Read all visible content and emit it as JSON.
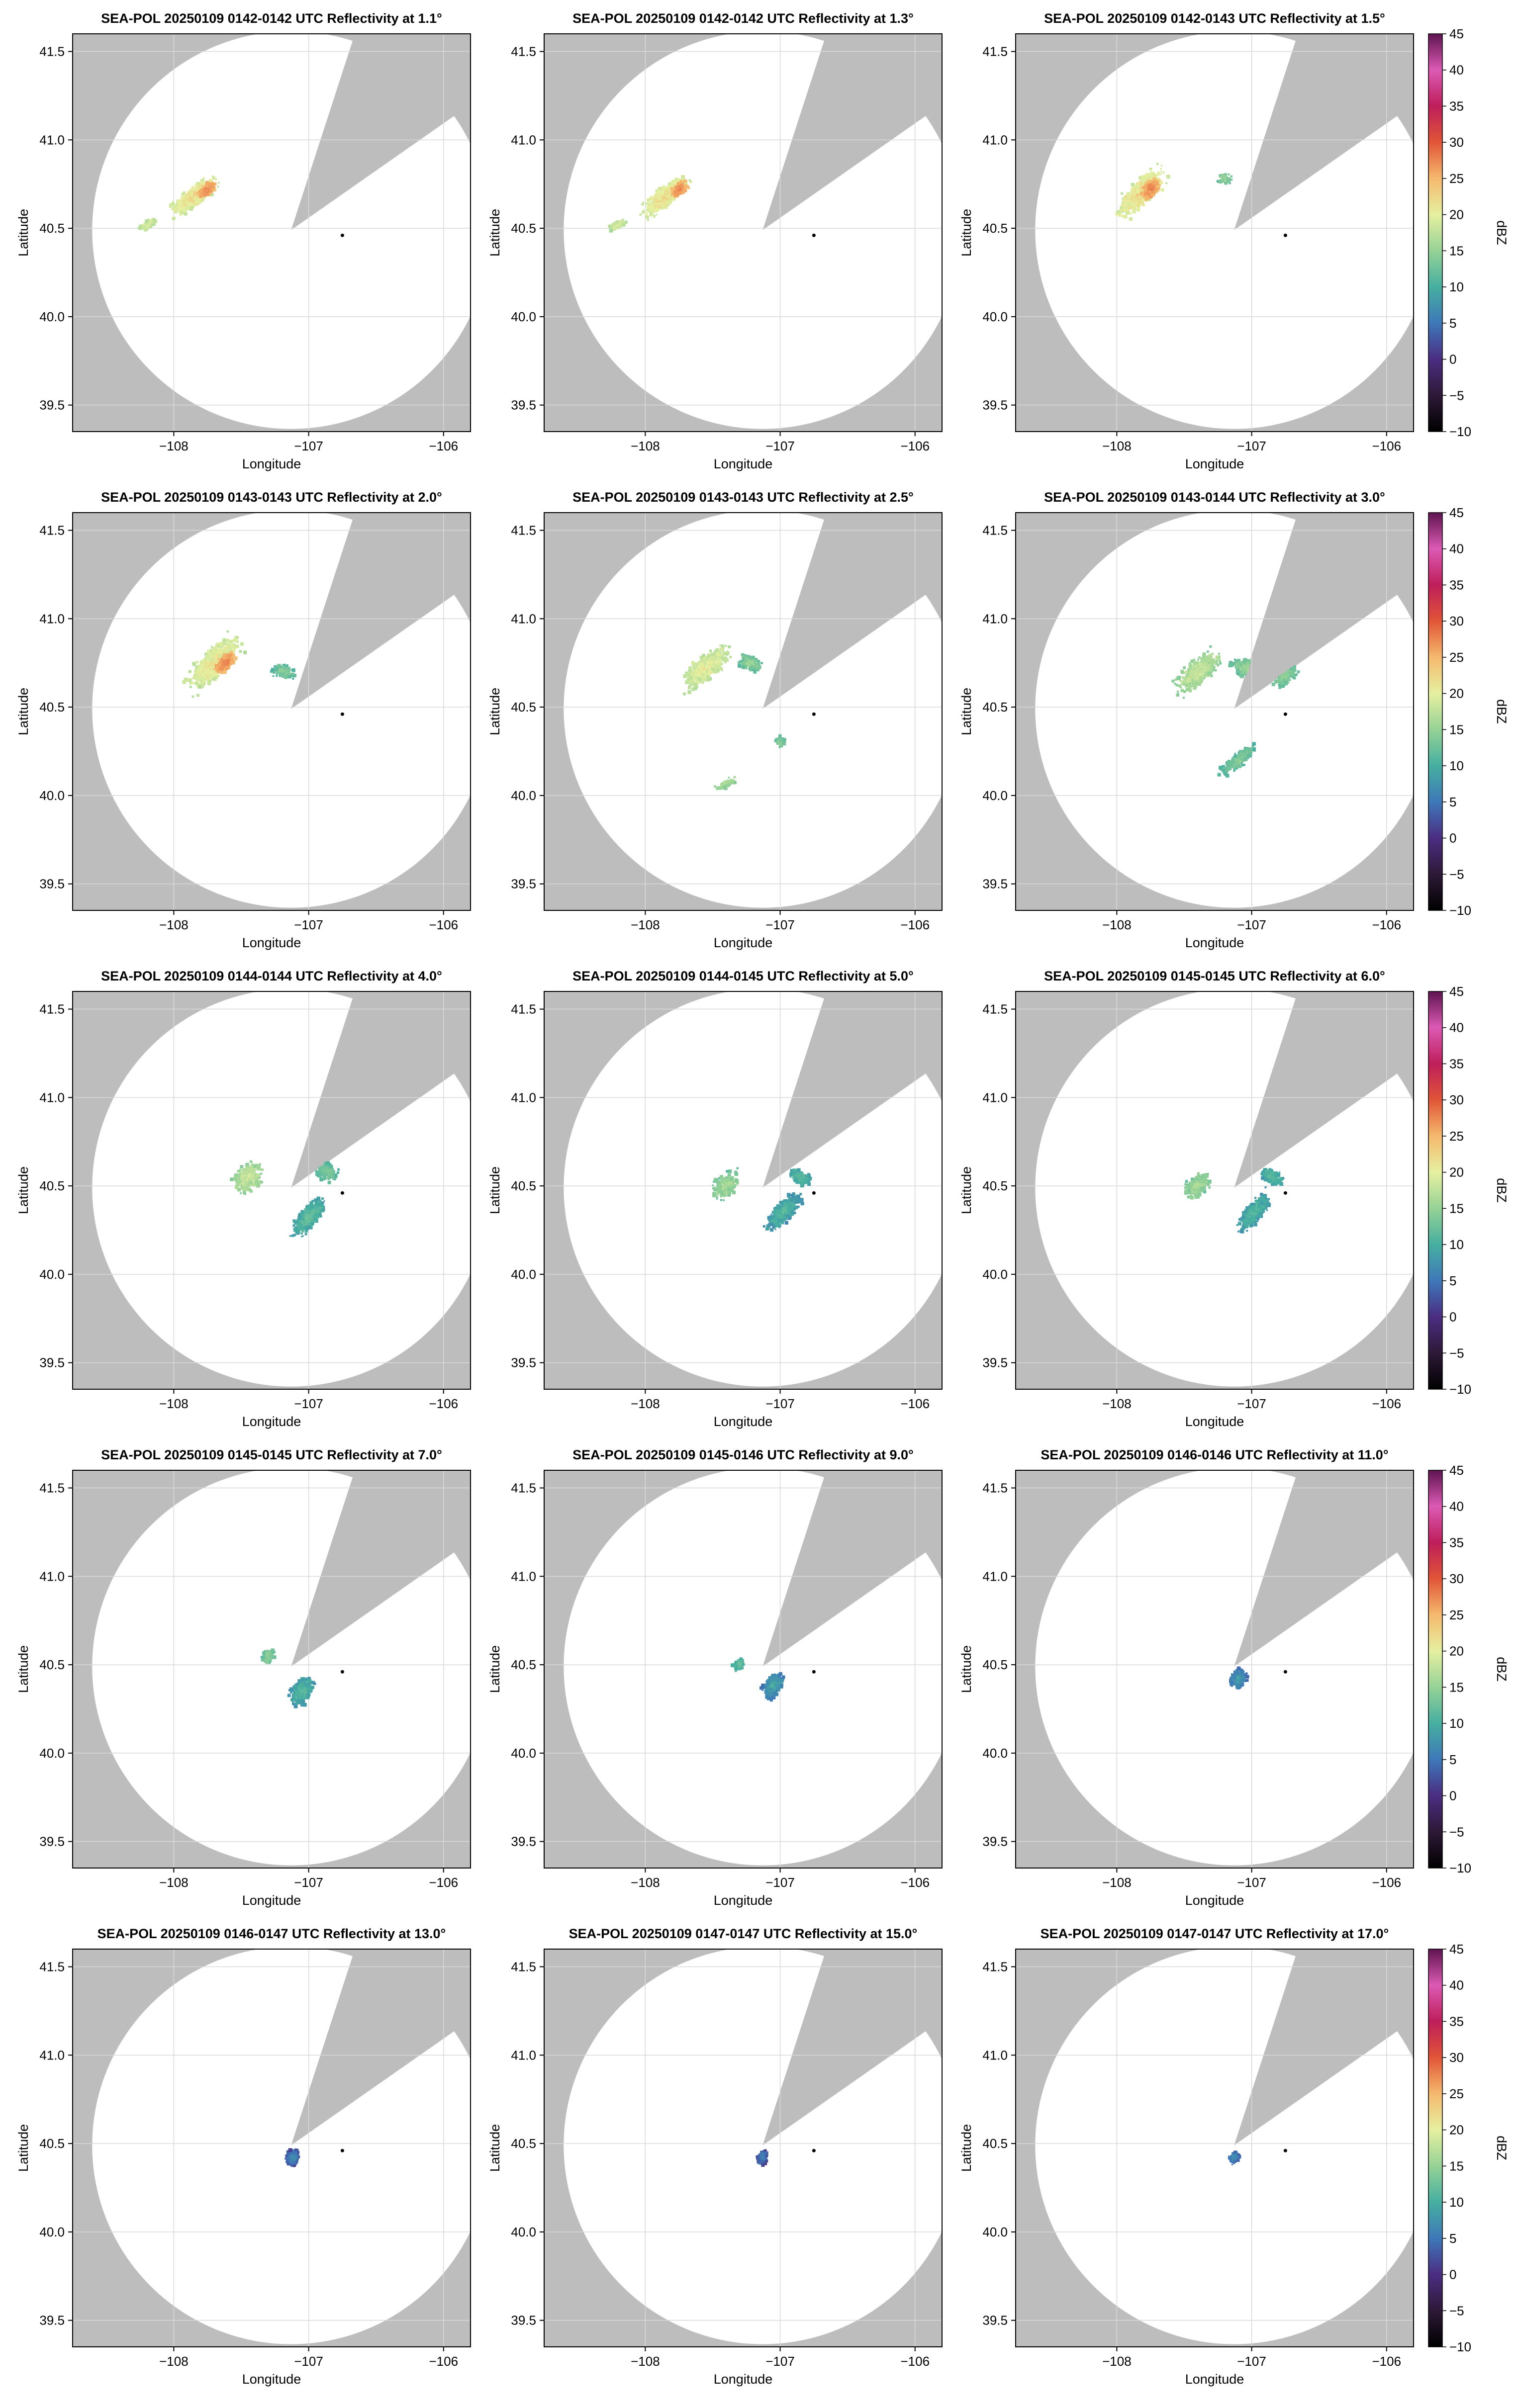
{
  "figure": {
    "xlabel": "Longitude",
    "ylabel": "Latitude",
    "colorbar_label": "dBZ",
    "colorbar_ticks": [
      "45",
      "40",
      "35",
      "30",
      "25",
      "20",
      "15",
      "10",
      "5",
      "0",
      "−5",
      "−10"
    ],
    "colorbar_values": [
      45,
      40,
      35,
      30,
      25,
      20,
      15,
      10,
      5,
      0,
      -5,
      -10
    ],
    "x_tick_labels": [
      "−108",
      "−107",
      "−106"
    ],
    "y_tick_labels": [
      "41.5",
      "41.0",
      "40.5",
      "40.0",
      "39.5"
    ],
    "colors": {
      "outside_range": "#bdbdbd",
      "radar_domain": "#ffffff",
      "grid": "#d9d9d9"
    }
  },
  "chart_data": [
    {
      "type": "heatmap",
      "title": "SEA-POL 20250109 0142-0142 UTC Reflectivity at 1.1°",
      "elevation_deg": 1.1,
      "xlim": [
        -108.75,
        -105.8
      ],
      "ylim": [
        39.35,
        41.6
      ],
      "xticks": [
        -108,
        -107,
        -106
      ],
      "yticks": [
        39.5,
        40.0,
        40.5,
        41.0,
        41.5
      ],
      "station": [
        -106.75,
        40.46
      ],
      "has_colorbar": false
    },
    {
      "type": "heatmap",
      "title": "SEA-POL 20250109 0142-0142 UTC Reflectivity at 1.3°",
      "elevation_deg": 1.3,
      "xlim": [
        -108.75,
        -105.8
      ],
      "ylim": [
        39.35,
        41.6
      ],
      "xticks": [
        -108,
        -107,
        -106
      ],
      "yticks": [
        39.5,
        40.0,
        40.5,
        41.0,
        41.5
      ],
      "station": [
        -106.75,
        40.46
      ],
      "has_colorbar": false
    },
    {
      "type": "heatmap",
      "title": "SEA-POL 20250109 0142-0143 UTC Reflectivity at 1.5°",
      "elevation_deg": 1.5,
      "xlim": [
        -108.75,
        -105.8
      ],
      "ylim": [
        39.35,
        41.6
      ],
      "xticks": [
        -108,
        -107,
        -106
      ],
      "yticks": [
        39.5,
        40.0,
        40.5,
        41.0,
        41.5
      ],
      "station": [
        -106.75,
        40.46
      ],
      "has_colorbar": true
    },
    {
      "type": "heatmap",
      "title": "SEA-POL 20250109 0143-0143 UTC Reflectivity at 2.0°",
      "elevation_deg": 2.0,
      "xlim": [
        -108.75,
        -105.8
      ],
      "ylim": [
        39.35,
        41.6
      ],
      "xticks": [
        -108,
        -107,
        -106
      ],
      "yticks": [
        39.5,
        40.0,
        40.5,
        41.0,
        41.5
      ],
      "station": [
        -106.75,
        40.46
      ],
      "has_colorbar": false
    },
    {
      "type": "heatmap",
      "title": "SEA-POL 20250109 0143-0143 UTC Reflectivity at 2.5°",
      "elevation_deg": 2.5,
      "xlim": [
        -108.75,
        -105.8
      ],
      "ylim": [
        39.35,
        41.6
      ],
      "xticks": [
        -108,
        -107,
        -106
      ],
      "yticks": [
        39.5,
        40.0,
        40.5,
        41.0,
        41.5
      ],
      "station": [
        -106.75,
        40.46
      ],
      "has_colorbar": false
    },
    {
      "type": "heatmap",
      "title": "SEA-POL 20250109 0143-0144 UTC Reflectivity at 3.0°",
      "elevation_deg": 3.0,
      "xlim": [
        -108.75,
        -105.8
      ],
      "ylim": [
        39.35,
        41.6
      ],
      "xticks": [
        -108,
        -107,
        -106
      ],
      "yticks": [
        39.5,
        40.0,
        40.5,
        41.0,
        41.5
      ],
      "station": [
        -106.75,
        40.46
      ],
      "has_colorbar": true
    },
    {
      "type": "heatmap",
      "title": "SEA-POL 20250109 0144-0144 UTC Reflectivity at 4.0°",
      "elevation_deg": 4.0,
      "xlim": [
        -108.75,
        -105.8
      ],
      "ylim": [
        39.35,
        41.6
      ],
      "xticks": [
        -108,
        -107,
        -106
      ],
      "yticks": [
        39.5,
        40.0,
        40.5,
        41.0,
        41.5
      ],
      "station": [
        -106.75,
        40.46
      ],
      "has_colorbar": false
    },
    {
      "type": "heatmap",
      "title": "SEA-POL 20250109 0144-0145 UTC Reflectivity at 5.0°",
      "elevation_deg": 5.0,
      "xlim": [
        -108.75,
        -105.8
      ],
      "ylim": [
        39.35,
        41.6
      ],
      "xticks": [
        -108,
        -107,
        -106
      ],
      "yticks": [
        39.5,
        40.0,
        40.5,
        41.0,
        41.5
      ],
      "station": [
        -106.75,
        40.46
      ],
      "has_colorbar": false
    },
    {
      "type": "heatmap",
      "title": "SEA-POL 20250109 0145-0145 UTC Reflectivity at 6.0°",
      "elevation_deg": 6.0,
      "xlim": [
        -108.75,
        -105.8
      ],
      "ylim": [
        39.35,
        41.6
      ],
      "xticks": [
        -108,
        -107,
        -106
      ],
      "yticks": [
        39.5,
        40.0,
        40.5,
        41.0,
        41.5
      ],
      "station": [
        -106.75,
        40.46
      ],
      "has_colorbar": true
    },
    {
      "type": "heatmap",
      "title": "SEA-POL 20250109 0145-0145 UTC Reflectivity at 7.0°",
      "elevation_deg": 7.0,
      "xlim": [
        -108.75,
        -105.8
      ],
      "ylim": [
        39.35,
        41.6
      ],
      "xticks": [
        -108,
        -107,
        -106
      ],
      "yticks": [
        39.5,
        40.0,
        40.5,
        41.0,
        41.5
      ],
      "station": [
        -106.75,
        40.46
      ],
      "has_colorbar": false
    },
    {
      "type": "heatmap",
      "title": "SEA-POL 20250109 0145-0146 UTC Reflectivity at 9.0°",
      "elevation_deg": 9.0,
      "xlim": [
        -108.75,
        -105.8
      ],
      "ylim": [
        39.35,
        41.6
      ],
      "xticks": [
        -108,
        -107,
        -106
      ],
      "yticks": [
        39.5,
        40.0,
        40.5,
        41.0,
        41.5
      ],
      "station": [
        -106.75,
        40.46
      ],
      "has_colorbar": false
    },
    {
      "type": "heatmap",
      "title": "SEA-POL 20250109 0146-0146 UTC Reflectivity at 11.0°",
      "elevation_deg": 11.0,
      "xlim": [
        -108.75,
        -105.8
      ],
      "ylim": [
        39.35,
        41.6
      ],
      "xticks": [
        -108,
        -107,
        -106
      ],
      "yticks": [
        39.5,
        40.0,
        40.5,
        41.0,
        41.5
      ],
      "station": [
        -106.75,
        40.46
      ],
      "has_colorbar": true
    },
    {
      "type": "heatmap",
      "title": "SEA-POL 20250109 0146-0147 UTC Reflectivity at 13.0°",
      "elevation_deg": 13.0,
      "xlim": [
        -108.75,
        -105.8
      ],
      "ylim": [
        39.35,
        41.6
      ],
      "xticks": [
        -108,
        -107,
        -106
      ],
      "yticks": [
        39.5,
        40.0,
        40.5,
        41.0,
        41.5
      ],
      "station": [
        -106.75,
        40.46
      ],
      "has_colorbar": false
    },
    {
      "type": "heatmap",
      "title": "SEA-POL 20250109 0147-0147 UTC Reflectivity at 15.0°",
      "elevation_deg": 15.0,
      "xlim": [
        -108.75,
        -105.8
      ],
      "ylim": [
        39.35,
        41.6
      ],
      "xticks": [
        -108,
        -107,
        -106
      ],
      "yticks": [
        39.5,
        40.0,
        40.5,
        41.0,
        41.5
      ],
      "station": [
        -106.75,
        40.46
      ],
      "has_colorbar": false
    },
    {
      "type": "heatmap",
      "title": "SEA-POL 20250109 0147-0147 UTC Reflectivity at 17.0°",
      "elevation_deg": 17.0,
      "xlim": [
        -108.75,
        -105.8
      ],
      "ylim": [
        39.35,
        41.6
      ],
      "xticks": [
        -108,
        -107,
        -106
      ],
      "yticks": [
        39.5,
        40.0,
        40.5,
        41.0,
        41.5
      ],
      "station": [
        -106.75,
        40.46
      ],
      "has_colorbar": true
    }
  ]
}
